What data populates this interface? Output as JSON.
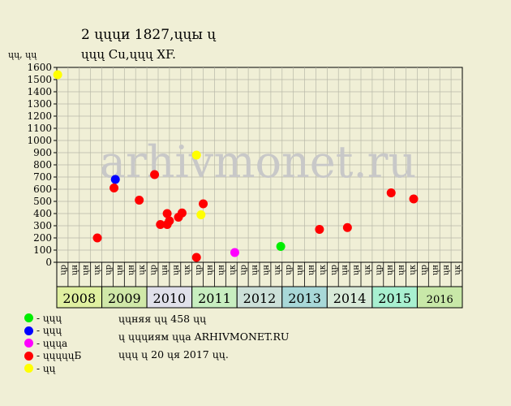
{
  "title": "2 ųųųи 1827,ųųы ų",
  "subtitle": "ųųų Cu,ųųų XF.",
  "watermark": "arhivmonet.ru",
  "stats": [
    "ųųняя ųų 458 ųų",
    "ų ųųųиям ųųа ARHIVMONET.RU",
    "ųųų ų 20 ųя 2017 ųų."
  ],
  "legend": [
    {
      "label": "- ųųų",
      "color": "#00ee00"
    },
    {
      "label": "- ųųų",
      "color": "#0000ff"
    },
    {
      "label": "- ųųųа",
      "color": "#ff00ff"
    },
    {
      "label": "- ųųųųųБ",
      "color": "#ff0000"
    },
    {
      "label": "- ųų",
      "color": "#ffff00"
    }
  ],
  "chart_data": {
    "type": "scatter",
    "ylabel": "ųų, ųų",
    "ylim": [
      0,
      1600
    ],
    "yticks": [
      0,
      100,
      200,
      300,
      400,
      500,
      600,
      700,
      800,
      900,
      1000,
      1100,
      1200,
      1300,
      1400,
      1500,
      1600
    ],
    "grid": true,
    "quarter_labels": [
      "ųр",
      "ųн",
      "ųн",
      "ųк"
    ],
    "years": [
      {
        "label": "2008",
        "color": "#e0f0a0"
      },
      {
        "label": "2009",
        "color": "#d0e8a8"
      },
      {
        "label": "2010",
        "color": "#e0e0ea"
      },
      {
        "label": "2011",
        "color": "#c8eec0"
      },
      {
        "label": "2012",
        "color": "#cce0d8"
      },
      {
        "label": "2013",
        "color": "#a8d8d8"
      },
      {
        "label": "2014",
        "color": "#d8ead8"
      },
      {
        "label": "2015",
        "color": "#a8f0d0"
      },
      {
        "label": "2016",
        "color": "#c8e8a8"
      }
    ],
    "x_unit": "year",
    "xlim": [
      2008.0,
      2017.0
    ],
    "series": [
      {
        "color": "#ffff00",
        "points": [
          [
            2008.02,
            1540
          ],
          [
            2011.1,
            880
          ],
          [
            2011.2,
            390
          ]
        ]
      },
      {
        "color": "#0000ff",
        "points": [
          [
            2009.3,
            680
          ]
        ]
      },
      {
        "color": "#ff0000",
        "points": [
          [
            2009.27,
            610
          ],
          [
            2009.83,
            510
          ],
          [
            2010.17,
            720
          ],
          [
            2010.3,
            310
          ],
          [
            2010.45,
            310
          ],
          [
            2010.45,
            400
          ],
          [
            2010.5,
            340
          ],
          [
            2010.7,
            370
          ],
          [
            2010.78,
            405
          ],
          [
            2011.1,
            40
          ],
          [
            2011.25,
            480
          ],
          [
            2013.83,
            270
          ],
          [
            2014.45,
            285
          ],
          [
            2015.42,
            570
          ],
          [
            2015.92,
            520
          ],
          [
            2008.9,
            200
          ]
        ]
      },
      {
        "color": "#ff00ff",
        "points": [
          [
            2011.95,
            80
          ]
        ]
      },
      {
        "color": "#00ee00",
        "points": [
          [
            2012.97,
            130
          ]
        ]
      }
    ]
  }
}
